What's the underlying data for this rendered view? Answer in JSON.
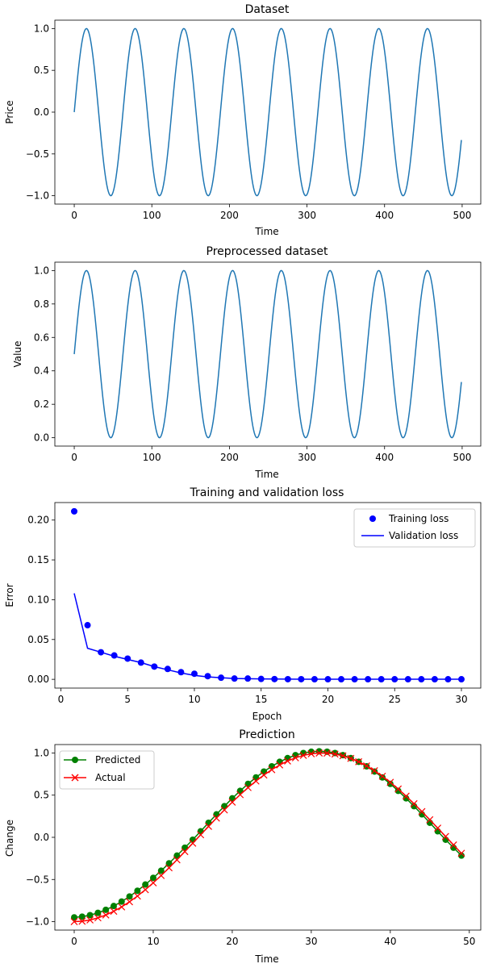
{
  "colors": {
    "line_default": "#1f77b4",
    "training": "#0000ff",
    "validation": "#0000ff",
    "predicted": "#008000",
    "actual": "#ff0000"
  },
  "chart_data": [
    {
      "type": "line",
      "title": "Dataset",
      "xlabel": "Time",
      "ylabel": "Price",
      "xlim": [
        -25,
        524
      ],
      "ylim": [
        -1.1,
        1.1
      ],
      "xticks": [
        0,
        100,
        200,
        300,
        400,
        500
      ],
      "yticks": [
        -1.0,
        -0.5,
        0.0,
        0.5,
        1.0
      ],
      "ytick_labels": [
        "−1.0",
        "−0.5",
        "0.0",
        "0.5",
        "1.0"
      ],
      "grid": false,
      "series": [
        {
          "function": "sin",
          "x_start": 0,
          "x_end": 499,
          "step": 1,
          "period": 62.8,
          "amplitude": 1.0,
          "offset": 0.0,
          "color": "#1f77b4"
        }
      ]
    },
    {
      "type": "line",
      "title": "Preprocessed dataset",
      "xlabel": "Time",
      "ylabel": "Value",
      "xlim": [
        -25,
        524
      ],
      "ylim": [
        -0.05,
        1.05
      ],
      "xticks": [
        0,
        100,
        200,
        300,
        400,
        500
      ],
      "yticks": [
        0.0,
        0.2,
        0.4,
        0.6,
        0.8,
        1.0
      ],
      "ytick_labels": [
        "0.0",
        "0.2",
        "0.4",
        "0.6",
        "0.8",
        "1.0"
      ],
      "grid": false,
      "series": [
        {
          "function": "sin",
          "x_start": 0,
          "x_end": 499,
          "step": 1,
          "period": 62.8,
          "amplitude": 0.5,
          "offset": 0.5,
          "color": "#1f77b4"
        }
      ]
    },
    {
      "type": "scatter",
      "title": "Training and validation loss",
      "xlabel": "Epoch",
      "ylabel": "Error",
      "xlim": [
        -0.45,
        31.45
      ],
      "ylim": [
        -0.011,
        0.222
      ],
      "xticks": [
        0,
        5,
        10,
        15,
        20,
        25,
        30
      ],
      "yticks": [
        0.0,
        0.05,
        0.1,
        0.15,
        0.2
      ],
      "ytick_labels": [
        "0.00",
        "0.05",
        "0.10",
        "0.15",
        "0.20"
      ],
      "grid": false,
      "legend": "top-right",
      "series": [
        {
          "name": "Training loss",
          "marker": "circle",
          "color": "#0000ff",
          "x": [
            1,
            2,
            3,
            4,
            5,
            6,
            7,
            8,
            9,
            10,
            11,
            12,
            13,
            14,
            15,
            16,
            17,
            18,
            19,
            20,
            21,
            22,
            23,
            24,
            25,
            26,
            27,
            28,
            29,
            30
          ],
          "values": [
            0.211,
            0.068,
            0.034,
            0.03,
            0.026,
            0.021,
            0.016,
            0.013,
            0.009,
            0.007,
            0.004,
            0.002,
            0.001,
            0.001,
            0.0005,
            0.0003,
            0.0002,
            0.0002,
            0.0001,
            0.0001,
            0.0001,
            0.0001,
            0.0001,
            0.0001,
            0.0001,
            0.0001,
            0.0001,
            0.0001,
            0.0001,
            0.0001
          ]
        },
        {
          "name": "Validation loss",
          "marker": "none",
          "color": "#0000ff",
          "x": [
            1,
            2,
            3,
            4,
            5,
            6,
            7,
            8,
            9,
            10,
            11,
            12,
            13,
            14,
            15,
            16,
            17,
            18,
            19,
            20,
            21,
            22,
            23,
            24,
            25,
            26,
            27,
            28,
            29,
            30
          ],
          "values": [
            0.108,
            0.039,
            0.034,
            0.029,
            0.025,
            0.021,
            0.016,
            0.012,
            0.008,
            0.005,
            0.003,
            0.002,
            0.001,
            0.0008,
            0.0005,
            0.0004,
            0.0003,
            0.0002,
            0.0002,
            0.0001,
            0.0001,
            0.0001,
            0.0001,
            0.0001,
            0.0001,
            0.0001,
            0.0001,
            0.0001,
            0.0001,
            0.0001
          ]
        }
      ]
    },
    {
      "type": "line",
      "title": "Prediction",
      "xlabel": "Time",
      "ylabel": "Change",
      "xlim": [
        -2.45,
        51.45
      ],
      "ylim": [
        -1.1,
        1.1
      ],
      "xticks": [
        0,
        10,
        20,
        30,
        40,
        50
      ],
      "yticks": [
        -1.0,
        -0.5,
        0.0,
        0.5,
        1.0
      ],
      "ytick_labels": [
        "−1.0",
        "−0.5",
        "0.0",
        "0.5",
        "1.0"
      ],
      "grid": false,
      "legend": "top-left",
      "series": [
        {
          "name": "Predicted",
          "marker": "circle",
          "color": "#008000",
          "x_start": 0,
          "x_end": 49,
          "period": 62.8,
          "center": 31.0,
          "amp_min": -0.95,
          "amp_max": 1.02
        },
        {
          "name": "Actual",
          "marker": "x",
          "color": "#ff0000",
          "x_start": 0,
          "x_end": 49,
          "period": 62.8,
          "center": 31.4,
          "amp_min": -1.0,
          "amp_max": 1.0
        }
      ]
    }
  ]
}
